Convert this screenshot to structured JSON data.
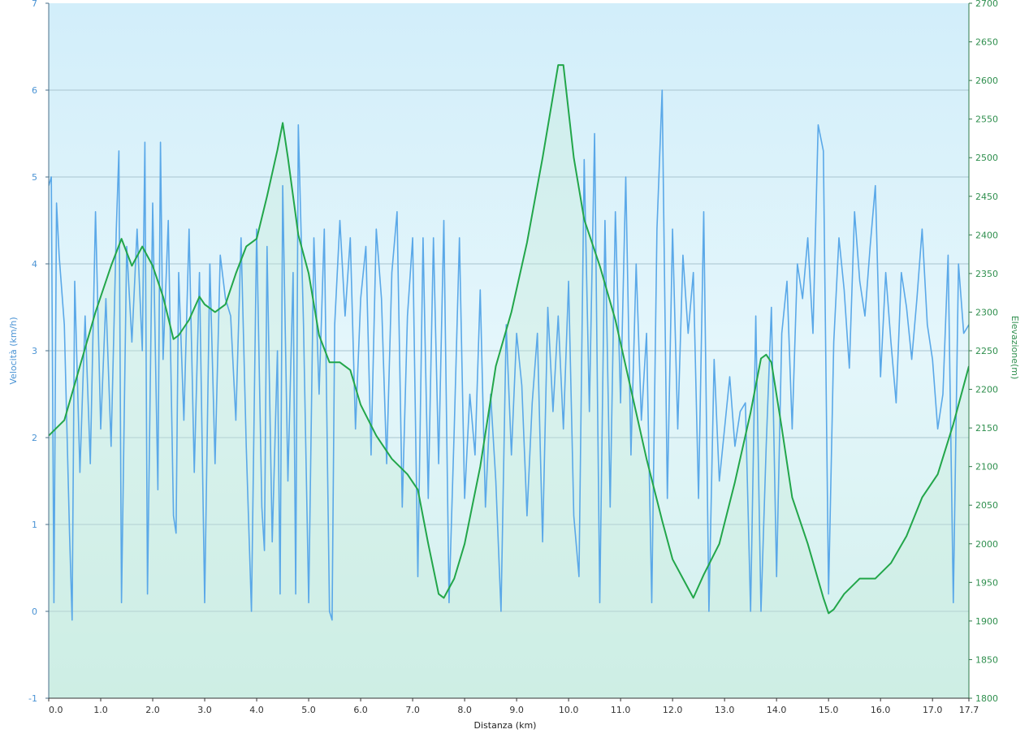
{
  "chart_data": {
    "type": "line",
    "title": "",
    "xlabel": "Distanza  (km)",
    "ylabel_left": "Velocità (km/h)",
    "ylabel_right": "Elevazione(m)",
    "xlim": [
      0,
      17.7
    ],
    "ylim_left": [
      -1,
      7
    ],
    "ylim_right": [
      1800,
      2700
    ],
    "grid": true,
    "legend": "none",
    "x_tick_labels": [
      "0.0",
      "1.0",
      "2.0",
      "3.0",
      "4.0",
      "5.0",
      "6.0",
      "7.0",
      "8.0",
      "9.0",
      "10.0",
      "11.0",
      "12.0",
      "13.0",
      "14.0",
      "15.0",
      "16.0",
      "17.0",
      "17.7"
    ],
    "x_ticks": [
      0,
      1,
      2,
      3,
      4,
      5,
      6,
      7,
      8,
      9,
      10,
      11,
      12,
      13,
      14,
      15,
      16,
      17,
      17.7
    ],
    "y_left_ticks": [
      -1,
      0,
      1,
      2,
      3,
      4,
      5,
      6,
      7
    ],
    "y_right_ticks": [
      1800,
      1850,
      1900,
      1950,
      2000,
      2050,
      2100,
      2150,
      2200,
      2250,
      2300,
      2350,
      2400,
      2450,
      2500,
      2550,
      2600,
      2650,
      2700
    ],
    "colors": {
      "speed": "#5aa8e8",
      "elevation": "#22a64a",
      "background_top": "#d4eefa",
      "background_bottom": "#d8f2ee"
    },
    "series": [
      {
        "key": "speed",
        "axis": "left",
        "x": [
          0.0,
          0.05,
          0.1,
          0.15,
          0.2,
          0.3,
          0.4,
          0.45,
          0.5,
          0.6,
          0.7,
          0.8,
          0.9,
          1.0,
          1.1,
          1.2,
          1.3,
          1.35,
          1.4,
          1.5,
          1.6,
          1.7,
          1.8,
          1.85,
          1.9,
          2.0,
          2.1,
          2.15,
          2.2,
          2.3,
          2.4,
          2.45,
          2.5,
          2.6,
          2.7,
          2.8,
          2.9,
          3.0,
          3.1,
          3.2,
          3.3,
          3.4,
          3.5,
          3.6,
          3.7,
          3.8,
          3.9,
          4.0,
          4.1,
          4.15,
          4.2,
          4.3,
          4.4,
          4.45,
          4.5,
          4.6,
          4.7,
          4.75,
          4.8,
          4.9,
          5.0,
          5.1,
          5.2,
          5.3,
          5.4,
          5.45,
          5.5,
          5.6,
          5.7,
          5.8,
          5.9,
          6.0,
          6.1,
          6.2,
          6.3,
          6.4,
          6.5,
          6.6,
          6.7,
          6.8,
          6.9,
          7.0,
          7.1,
          7.2,
          7.3,
          7.4,
          7.5,
          7.6,
          7.7,
          7.8,
          7.9,
          8.0,
          8.1,
          8.2,
          8.3,
          8.4,
          8.5,
          8.6,
          8.7,
          8.8,
          8.9,
          9.0,
          9.1,
          9.2,
          9.3,
          9.4,
          9.5,
          9.6,
          9.7,
          9.8,
          9.9,
          10.0,
          10.1,
          10.2,
          10.3,
          10.4,
          10.5,
          10.6,
          10.7,
          10.8,
          10.9,
          11.0,
          11.1,
          11.2,
          11.3,
          11.4,
          11.5,
          11.6,
          11.7,
          11.8,
          11.9,
          12.0,
          12.1,
          12.2,
          12.3,
          12.4,
          12.5,
          12.6,
          12.7,
          12.8,
          12.9,
          13.0,
          13.1,
          13.2,
          13.3,
          13.4,
          13.5,
          13.6,
          13.7,
          13.8,
          13.9,
          14.0,
          14.1,
          14.2,
          14.3,
          14.4,
          14.5,
          14.6,
          14.7,
          14.8,
          14.9,
          15.0,
          15.1,
          15.2,
          15.3,
          15.4,
          15.5,
          15.6,
          15.7,
          15.8,
          15.9,
          16.0,
          16.1,
          16.2,
          16.3,
          16.4,
          16.5,
          16.6,
          16.7,
          16.8,
          16.9,
          17.0,
          17.1,
          17.2,
          17.3,
          17.4,
          17.5,
          17.6,
          17.7
        ],
        "y": [
          4.9,
          5.0,
          0.1,
          4.7,
          4.1,
          3.3,
          0.9,
          -0.1,
          3.8,
          1.6,
          3.4,
          1.7,
          4.6,
          2.1,
          3.6,
          1.9,
          4.4,
          5.3,
          0.1,
          4.2,
          3.1,
          4.4,
          3.0,
          5.4,
          0.2,
          4.7,
          1.4,
          5.4,
          2.9,
          4.5,
          1.1,
          0.9,
          3.9,
          2.2,
          4.4,
          1.6,
          3.9,
          0.1,
          4.0,
          1.7,
          4.1,
          3.6,
          3.4,
          2.2,
          4.3,
          1.9,
          0.0,
          4.4,
          1.2,
          0.7,
          4.2,
          0.8,
          3.0,
          0.2,
          4.9,
          1.5,
          3.9,
          0.2,
          5.6,
          3.3,
          0.1,
          4.3,
          2.5,
          4.4,
          0.0,
          -0.1,
          3.3,
          4.5,
          3.4,
          4.3,
          2.1,
          3.6,
          4.2,
          1.8,
          4.4,
          3.6,
          1.7,
          3.9,
          4.6,
          1.2,
          3.4,
          4.3,
          0.4,
          4.3,
          1.3,
          4.3,
          1.7,
          4.5,
          0.1,
          2.1,
          4.3,
          1.3,
          2.5,
          1.8,
          3.7,
          1.2,
          2.5,
          1.5,
          0.0,
          3.3,
          1.8,
          3.2,
          2.6,
          1.1,
          2.4,
          3.2,
          0.8,
          3.5,
          2.3,
          3.4,
          2.1,
          3.8,
          1.1,
          0.4,
          5.2,
          2.3,
          5.5,
          0.1,
          4.5,
          1.2,
          4.6,
          2.4,
          5.0,
          1.8,
          4.0,
          2.2,
          3.2,
          0.1,
          4.4,
          6.0,
          1.3,
          4.4,
          2.1,
          4.1,
          3.2,
          3.9,
          1.3,
          4.6,
          0.0,
          2.9,
          1.5,
          2.1,
          2.7,
          1.9,
          2.3,
          2.4,
          0.0,
          3.4,
          0.0,
          1.9,
          3.5,
          0.4,
          3.2,
          3.8,
          2.1,
          4.0,
          3.6,
          4.3,
          3.2,
          5.6,
          5.3,
          0.2,
          3.1,
          4.3,
          3.7,
          2.8,
          4.6,
          3.8,
          3.4,
          4.2,
          4.9,
          2.7,
          3.9,
          3.1,
          2.4,
          3.9,
          3.5,
          2.9,
          3.6,
          4.4,
          3.3,
          2.9,
          2.1,
          2.5,
          4.1,
          0.1,
          4.0,
          3.2,
          3.3
        ]
      },
      {
        "key": "elevation",
        "axis": "right",
        "x": [
          0.0,
          0.3,
          0.6,
          0.9,
          1.2,
          1.4,
          1.6,
          1.8,
          2.0,
          2.2,
          2.4,
          2.5,
          2.7,
          2.9,
          3.0,
          3.2,
          3.4,
          3.6,
          3.8,
          4.0,
          4.2,
          4.4,
          4.5,
          4.6,
          4.8,
          5.0,
          5.2,
          5.4,
          5.6,
          5.8,
          6.0,
          6.3,
          6.6,
          6.9,
          7.1,
          7.3,
          7.5,
          7.6,
          7.8,
          8.0,
          8.3,
          8.6,
          8.9,
          9.2,
          9.5,
          9.7,
          9.8,
          9.9,
          10.1,
          10.3,
          10.6,
          10.9,
          11.2,
          11.5,
          11.8,
          12.0,
          12.2,
          12.4,
          12.6,
          12.9,
          13.2,
          13.5,
          13.7,
          13.8,
          13.9,
          14.1,
          14.3,
          14.6,
          14.9,
          15.0,
          15.1,
          15.3,
          15.6,
          15.9,
          16.2,
          16.5,
          16.8,
          17.1,
          17.4,
          17.7
        ],
        "y": [
          2140,
          2160,
          2230,
          2300,
          2360,
          2395,
          2360,
          2385,
          2360,
          2320,
          2265,
          2270,
          2290,
          2320,
          2310,
          2300,
          2310,
          2350,
          2385,
          2395,
          2450,
          2510,
          2545,
          2500,
          2400,
          2350,
          2270,
          2235,
          2235,
          2225,
          2180,
          2140,
          2110,
          2090,
          2070,
          2000,
          1935,
          1930,
          1955,
          2000,
          2100,
          2230,
          2300,
          2390,
          2500,
          2580,
          2620,
          2620,
          2500,
          2420,
          2360,
          2290,
          2200,
          2110,
          2030,
          1980,
          1955,
          1930,
          1960,
          2000,
          2080,
          2170,
          2240,
          2245,
          2235,
          2150,
          2060,
          2000,
          1930,
          1910,
          1915,
          1935,
          1955,
          1955,
          1975,
          2010,
          2060,
          2090,
          2155,
          2230
        ]
      }
    ]
  }
}
